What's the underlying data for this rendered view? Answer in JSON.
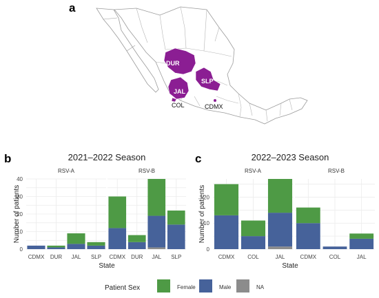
{
  "figure": {
    "labels": {
      "a": "a",
      "b": "b",
      "c": "c"
    }
  },
  "map": {
    "highlight_color": "#8B1E93",
    "states": [
      {
        "key": "dur",
        "label": "DUR"
      },
      {
        "key": "slp",
        "label": "SLP"
      },
      {
        "key": "jal",
        "label": "JAL"
      },
      {
        "key": "col",
        "label": "COL"
      },
      {
        "key": "cdmx",
        "label": "CDMX"
      }
    ]
  },
  "legend": {
    "title": "Patient Sex",
    "items": [
      {
        "label": "Female",
        "color": "#4E9A45"
      },
      {
        "label": "Male",
        "color": "#46629A"
      },
      {
        "label": "NA",
        "color": "#8C8C8C"
      }
    ]
  },
  "chart_data": [
    {
      "type": "bar",
      "stacked": true,
      "title": "2021–2022 Season",
      "xlabel": "State",
      "ylabel": "Number of patients",
      "ylim": [
        0,
        40
      ],
      "yticks": [
        0,
        10,
        20,
        30,
        40
      ],
      "grid": true,
      "facets": [
        {
          "name": "RSV-A",
          "categories": [
            "CDMX",
            "DUR",
            "JAL",
            "SLP"
          ],
          "series": [
            {
              "name": "NA",
              "values": [
                0,
                0,
                0,
                0
              ]
            },
            {
              "name": "Male",
              "values": [
                2,
                1,
                3,
                2
              ]
            },
            {
              "name": "Female",
              "values": [
                0,
                1,
                6,
                2
              ]
            }
          ]
        },
        {
          "name": "RSV-B",
          "categories": [
            "CDMX",
            "DUR",
            "JAL",
            "SLP"
          ],
          "series": [
            {
              "name": "NA",
              "values": [
                0,
                0,
                1,
                0
              ]
            },
            {
              "name": "Male",
              "values": [
                12,
                4,
                18,
                14
              ]
            },
            {
              "name": "Female",
              "values": [
                18,
                4,
                21,
                8
              ]
            }
          ]
        }
      ]
    },
    {
      "type": "bar",
      "stacked": true,
      "title": "2022–2023 Season",
      "xlabel": "State",
      "ylabel": "Number of patients",
      "ylim": [
        0,
        27
      ],
      "yticks": [
        0,
        10,
        20
      ],
      "grid": true,
      "facets": [
        {
          "name": "RSV-A",
          "categories": [
            "CDMX",
            "COL",
            "JAL"
          ],
          "series": [
            {
              "name": "NA",
              "values": [
                0,
                0,
                1
              ]
            },
            {
              "name": "Male",
              "values": [
                13,
                5,
                13
              ]
            },
            {
              "name": "Female",
              "values": [
                12,
                6,
                13
              ]
            }
          ]
        },
        {
          "name": "RSV-B",
          "categories": [
            "CDMX",
            "COL",
            "JAL"
          ],
          "series": [
            {
              "name": "NA",
              "values": [
                0,
                0,
                0
              ]
            },
            {
              "name": "Male",
              "values": [
                10,
                1,
                4
              ]
            },
            {
              "name": "Female",
              "values": [
                6,
                0,
                2
              ]
            }
          ]
        }
      ]
    }
  ]
}
